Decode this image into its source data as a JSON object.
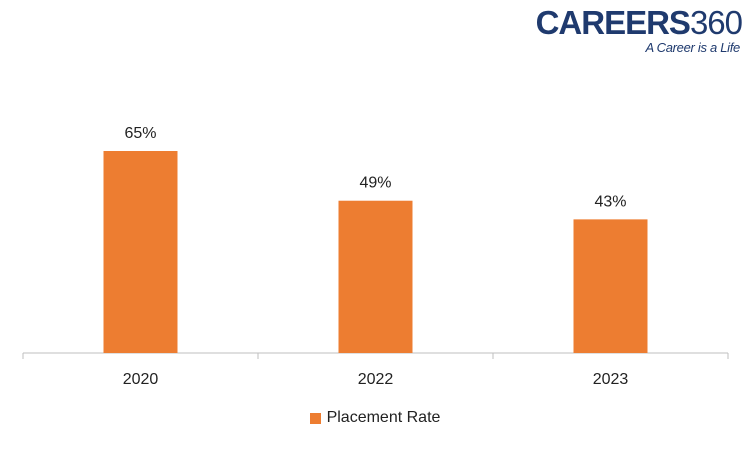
{
  "logo": {
    "word": "CAREERS",
    "number": "360",
    "tagline": "A Career is a Life"
  },
  "chart_data": {
    "type": "bar",
    "categories": [
      "2020",
      "2022",
      "2023"
    ],
    "series": [
      {
        "name": "Placement Rate",
        "values": [
          65,
          49,
          43
        ],
        "labels": [
          "65%",
          "49%",
          "43%"
        ],
        "color": "#ED7D31"
      }
    ],
    "ylim": [
      0,
      65
    ],
    "grid": false,
    "legend": "bottom"
  }
}
